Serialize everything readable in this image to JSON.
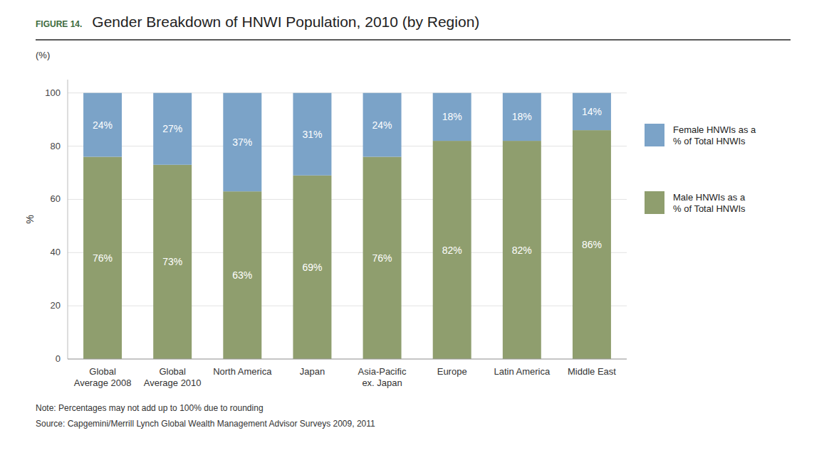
{
  "chart_data": {
    "type": "bar",
    "stacked": true,
    "title": "Gender Breakdown of HNWI Population, 2010 (by Region)",
    "annotations": [
      "FIGURE 14.",
      "(%)",
      "Note: Percentages may not add up to 100% due to rounding",
      "Source: Capgemini/Merrill Lynch Global Wealth Management Advisor Surveys 2009, 2011"
    ],
    "y_label": "%",
    "categories": [
      "Global\nAverage 2008",
      "Global\nAverage 2010",
      "North America",
      "Japan",
      "Asia-Pacific\nex. Japan",
      "Europe",
      "Latin America",
      "Middle East"
    ],
    "series": [
      {
        "name": "Male HNWIs as a\n% of Total HNWIs",
        "color": "#8F9E6E",
        "values": [
          76,
          73,
          63,
          69,
          76,
          82,
          82,
          86
        ],
        "value_labels": [
          "76%",
          "73%",
          "63%",
          "69%",
          "76%",
          "82%",
          "82%",
          "86%"
        ]
      },
      {
        "name": "Female HNWIs as a\n% of Total HNWIs",
        "color": "#7BA3C8",
        "values": [
          24,
          27,
          37,
          31,
          24,
          18,
          18,
          14
        ],
        "value_labels": [
          "24%",
          "27%",
          "37%",
          "31%",
          "24%",
          "18%",
          "18%",
          "14%"
        ]
      }
    ],
    "ylim": [
      0,
      105
    ],
    "yticks": [
      0,
      20,
      40,
      60,
      80,
      100
    ],
    "grid": true,
    "legend": "right",
    "data_labels": true
  }
}
